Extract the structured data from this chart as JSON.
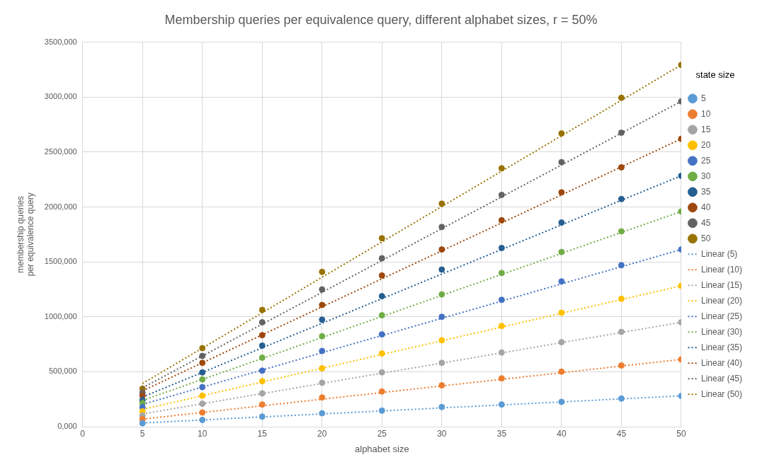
{
  "chart_data": {
    "type": "scatter",
    "title": "Membership queries per equivalence query, different alphabet sizes, r = 50%",
    "xlabel": "alphabet size",
    "ylabel": "membership queries per equivalence query",
    "legend_title": "state size",
    "legend": "right",
    "grid": true,
    "marker": "circle",
    "x": [
      5,
      10,
      15,
      20,
      25,
      30,
      35,
      40,
      45,
      50
    ],
    "xlim": [
      0,
      50
    ],
    "xticks": [
      0,
      5,
      10,
      15,
      20,
      25,
      30,
      35,
      40,
      45,
      50
    ],
    "ylim": [
      0,
      3500000
    ],
    "yticks": [
      {
        "value": 0,
        "label": "0,000"
      },
      {
        "value": 500000,
        "label": "500,000"
      },
      {
        "value": 1000000,
        "label": "1000,000"
      },
      {
        "value": 1500000,
        "label": "1500,000"
      },
      {
        "value": 2000000,
        "label": "2000,000"
      },
      {
        "value": 2500000,
        "label": "2500,000"
      },
      {
        "value": 3000000,
        "label": "3000,000"
      },
      {
        "value": 3500000,
        "label": "3500,000"
      }
    ],
    "series": [
      {
        "name": "5",
        "color": "#5b9bd5",
        "values": [
          31000,
          61000,
          92000,
          122000,
          146000,
          179000,
          202000,
          226000,
          256000,
          280000
        ]
      },
      {
        "name": "10",
        "color": "#ed7d31",
        "values": [
          68000,
          129000,
          202000,
          266000,
          320000,
          376000,
          440000,
          501000,
          557000,
          612000
        ]
      },
      {
        "name": "15",
        "color": "#a5a5a5",
        "values": [
          101000,
          209000,
          303000,
          400000,
          494000,
          581000,
          675000,
          769000,
          863000,
          950000
        ]
      },
      {
        "name": "20",
        "color": "#ffc000",
        "values": [
          139000,
          282000,
          414000,
          531000,
          666000,
          786000,
          917000,
          1037000,
          1164000,
          1282000
        ]
      },
      {
        "name": "25",
        "color": "#4472c4",
        "values": [
          176000,
          360000,
          510000,
          689000,
          840000,
          1000000,
          1155000,
          1322000,
          1470000,
          1613000
        ]
      },
      {
        "name": "30",
        "color": "#70ad47",
        "values": [
          212000,
          430000,
          628000,
          823000,
          1014000,
          1204000,
          1399000,
          1590000,
          1778000,
          1959000
        ]
      },
      {
        "name": "35",
        "color": "#255e91",
        "values": [
          240000,
          494000,
          738000,
          974000,
          1188000,
          1430000,
          1627000,
          1858000,
          2072000,
          2284000
        ]
      },
      {
        "name": "40",
        "color": "#9e480e",
        "values": [
          282000,
          581000,
          833000,
          1108000,
          1376000,
          1613000,
          1879000,
          2133000,
          2361000,
          2620000
        ]
      },
      {
        "name": "45",
        "color": "#636363",
        "values": [
          310000,
          644000,
          950000,
          1249000,
          1533000,
          1818000,
          2110000,
          2408000,
          2676000,
          2961000
        ]
      },
      {
        "name": "50",
        "color": "#997300",
        "values": [
          346000,
          715000,
          1063000,
          1409000,
          1715000,
          2030000,
          2352000,
          2669000,
          2994000,
          3293000
        ]
      },
      {
        "name": "Linear (5)",
        "type": "line",
        "line_style": "dotted",
        "marker": "none",
        "color": "#5b9bd5",
        "values": [
          34000,
          61000,
          89000,
          116000,
          143000,
          171000,
          198000,
          225000,
          253000,
          280000
        ]
      },
      {
        "name": "Linear (10)",
        "type": "line",
        "line_style": "dotted",
        "marker": "none",
        "color": "#ed7d31",
        "values": [
          69000,
          129000,
          190000,
          250000,
          310000,
          371000,
          431000,
          491000,
          552000,
          612000
        ]
      },
      {
        "name": "Linear (15)",
        "type": "line",
        "line_style": "dotted",
        "marker": "none",
        "color": "#a5a5a5",
        "values": [
          116000,
          209000,
          301000,
          394000,
          487000,
          579000,
          672000,
          765000,
          857000,
          950000
        ]
      },
      {
        "name": "Linear (20)",
        "type": "line",
        "line_style": "dotted",
        "marker": "none",
        "color": "#ffc000",
        "values": [
          157000,
          282000,
          407000,
          532000,
          657000,
          782000,
          907000,
          1032000,
          1157000,
          1282000
        ]
      },
      {
        "name": "Linear (25)",
        "type": "line",
        "line_style": "dotted",
        "marker": "none",
        "color": "#4472c4",
        "values": [
          203000,
          360000,
          516000,
          673000,
          830000,
          986000,
          1143000,
          1300000,
          1456000,
          1613000
        ]
      },
      {
        "name": "Linear (30)",
        "type": "line",
        "line_style": "dotted",
        "marker": "none",
        "color": "#70ad47",
        "values": [
          239000,
          430000,
          621000,
          812000,
          1003000,
          1195000,
          1386000,
          1577000,
          1768000,
          1959000
        ]
      },
      {
        "name": "Linear (35)",
        "type": "line",
        "line_style": "dotted",
        "marker": "none",
        "color": "#255e91",
        "values": [
          270000,
          494000,
          718000,
          941000,
          1165000,
          1389000,
          1613000,
          1837000,
          2061000,
          2284000
        ]
      },
      {
        "name": "Linear (40)",
        "type": "line",
        "line_style": "dotted",
        "marker": "none",
        "color": "#9e480e",
        "values": [
          326000,
          581000,
          836000,
          1091000,
          1346000,
          1601000,
          1855000,
          2110000,
          2365000,
          2620000
        ]
      },
      {
        "name": "Linear (45)",
        "type": "line",
        "line_style": "dotted",
        "marker": "none",
        "color": "#636363",
        "values": [
          354000,
          644000,
          933000,
          1223000,
          1513000,
          1803000,
          2092000,
          2382000,
          2672000,
          2961000
        ]
      },
      {
        "name": "Linear (50)",
        "type": "line",
        "line_style": "dotted",
        "marker": "none",
        "color": "#997300",
        "values": [
          393000,
          715000,
          1037000,
          1360000,
          1682000,
          2004000,
          2326000,
          2648000,
          2971000,
          3293000
        ]
      }
    ]
  }
}
